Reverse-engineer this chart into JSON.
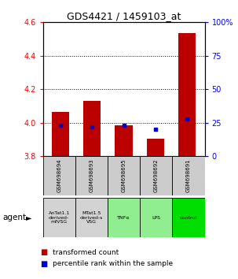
{
  "title": "GDS4421 / 1459103_at",
  "samples": [
    "GSM698694",
    "GSM698693",
    "GSM698695",
    "GSM698692",
    "GSM698691"
  ],
  "agents": [
    "AnTat1.1\nderived-\nmfVSG",
    "MTat1.5\nderived-s\nVSG",
    "TNFα",
    "LPS",
    "control"
  ],
  "agent_colors": [
    "#d3d3d3",
    "#d3d3d3",
    "#90ee90",
    "#90ee90",
    "#00dd00"
  ],
  "red_values": [
    4.065,
    4.13,
    3.985,
    3.905,
    4.535
  ],
  "blue_values_pct": [
    23,
    22,
    23,
    20,
    28
  ],
  "ylim_left": [
    3.8,
    4.6
  ],
  "ylim_right": [
    0,
    100
  ],
  "yticks_left": [
    3.8,
    4.0,
    4.2,
    4.4,
    4.6
  ],
  "yticks_right": [
    0,
    25,
    50,
    75,
    100
  ],
  "bar_base": 3.8,
  "red_color": "#bb0000",
  "blue_color": "#0000cc",
  "label_transformed": "transformed count",
  "label_percentile": "percentile rank within the sample",
  "agent_label": "agent"
}
